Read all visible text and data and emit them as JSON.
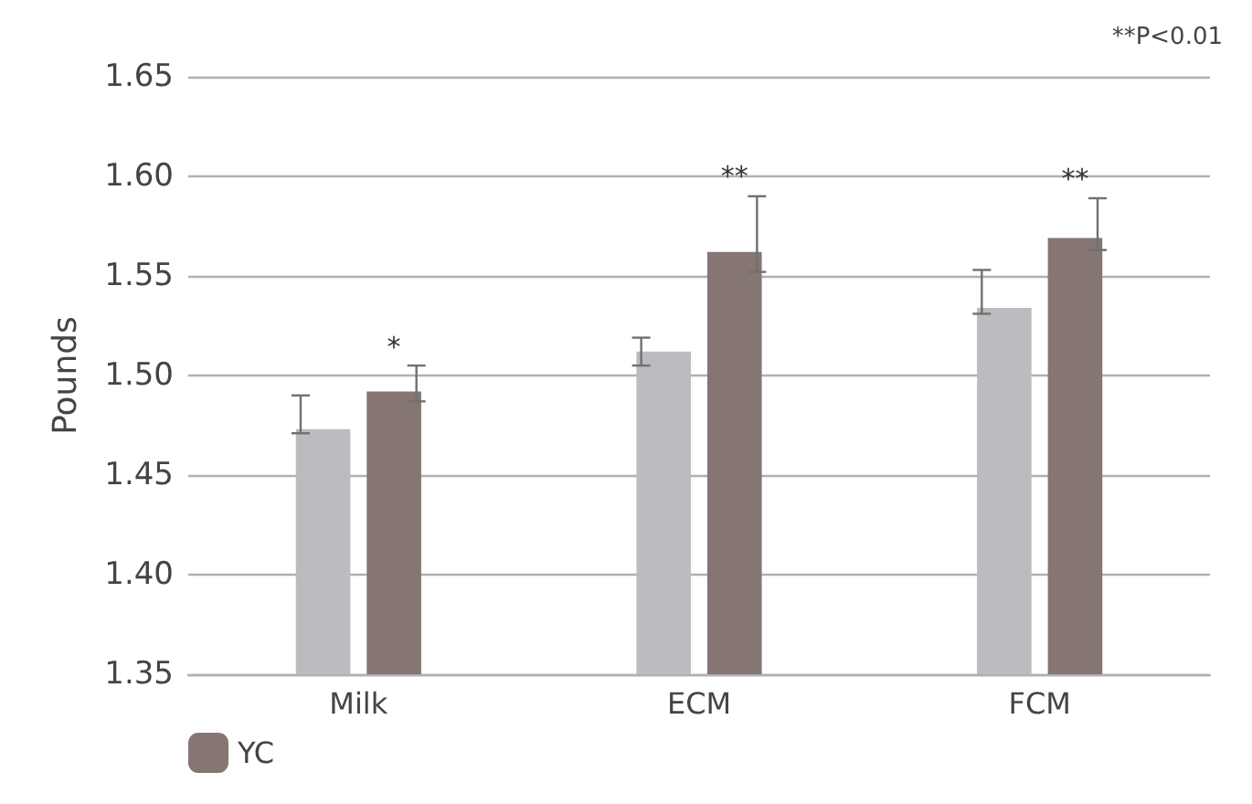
{
  "chart_data": {
    "type": "bar",
    "ylabel": "Pounds",
    "categories": [
      "Milk",
      "ECM",
      "FCM"
    ],
    "series": [
      {
        "color": "#bbbcc0",
        "values": [
          1.473,
          1.512,
          1.534
        ],
        "errors": [
          [
            1.471,
            1.49
          ],
          [
            1.505,
            1.519
          ],
          [
            1.531,
            1.553
          ]
        ]
      },
      {
        "name": "YC",
        "color": "#857673",
        "values": [
          1.492,
          1.562,
          1.569
        ],
        "errors": [
          [
            1.487,
            1.505
          ],
          [
            1.552,
            1.59
          ],
          [
            1.563,
            1.589
          ]
        ]
      }
    ],
    "ylim": [
      1.35,
      1.65
    ],
    "yticks": [
      1.35,
      {
        "value": 1.4,
        "label": "1.40"
      },
      1.45,
      {
        "value": 1.5,
        "label": "1.50"
      },
      1.55,
      {
        "value": 1.6,
        "label": "1.60"
      },
      1.65
    ],
    "grid": "y",
    "legend": "bottom left",
    "annotations": [
      {
        "text": "*",
        "x": "Milk",
        "y": 1.492
      },
      {
        "text": "**",
        "x": "ECM",
        "y": 1.562
      },
      {
        "text": "**",
        "x": "FCM",
        "y": 1.569
      },
      "**P<0.01"
    ]
  }
}
